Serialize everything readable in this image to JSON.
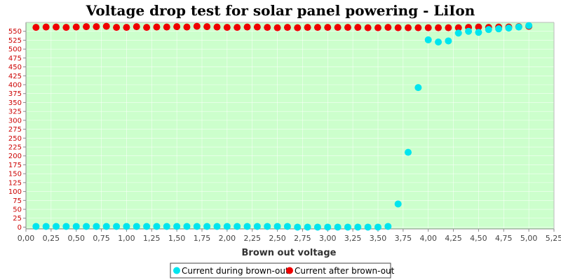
{
  "chart_data": {
    "type": "scatter",
    "title": "Voltage drop test for solar panel powering -  LiIon",
    "xlabel": "Brown out voltage",
    "ylabel": "",
    "xlim": [
      0,
      5.25
    ],
    "ylim": [
      -5,
      575
    ],
    "x_ticks": [
      "0,00",
      "0,25",
      "0,50",
      "0,75",
      "1,00",
      "1,25",
      "1,50",
      "1,75",
      "2,00",
      "2,25",
      "2,50",
      "2,75",
      "3,00",
      "3,25",
      "3,50",
      "3,75",
      "4,00",
      "4,25",
      "4,50",
      "4,75",
      "5,00",
      "5,25"
    ],
    "y_ticks": [
      "0",
      "25",
      "50",
      "75",
      "100",
      "125",
      "150",
      "175",
      "200",
      "225",
      "250",
      "275",
      "300",
      "325",
      "350",
      "375",
      "400",
      "425",
      "450",
      "475",
      "500",
      "525",
      "550"
    ],
    "grid": true,
    "legend_position": "bottom",
    "colors": {
      "plot_background": "#ccffcc",
      "during": "#00e5ee",
      "after": "#ee0000",
      "ytick": "#cc0000"
    },
    "series": [
      {
        "name": "Current after brown-out",
        "x": [
          0.1,
          0.2,
          0.3,
          0.4,
          0.5,
          0.6,
          0.7,
          0.8,
          0.9,
          1.0,
          1.1,
          1.2,
          1.3,
          1.4,
          1.5,
          1.6,
          1.7,
          1.8,
          1.9,
          2.0,
          2.1,
          2.2,
          2.3,
          2.4,
          2.5,
          2.6,
          2.7,
          2.8,
          2.9,
          3.0,
          3.1,
          3.2,
          3.3,
          3.4,
          3.5,
          3.6,
          3.7,
          3.8,
          3.9,
          4.0,
          4.1,
          4.2,
          4.3,
          4.4,
          4.5,
          4.6,
          4.7,
          4.8,
          4.9,
          5.0
        ],
        "y": [
          561,
          562,
          562,
          561,
          562,
          563,
          563,
          564,
          561,
          561,
          563,
          561,
          562,
          562,
          563,
          562,
          564,
          563,
          562,
          561,
          561,
          562,
          562,
          561,
          560,
          561,
          560,
          561,
          561,
          561,
          561,
          561,
          561,
          560,
          560,
          561,
          560,
          560,
          560,
          560,
          560,
          560,
          560,
          561,
          562,
          561,
          562,
          562,
          563,
          564
        ]
      },
      {
        "name": "Current during brown-out",
        "x": [
          0.1,
          0.2,
          0.3,
          0.4,
          0.5,
          0.6,
          0.7,
          0.8,
          0.9,
          1.0,
          1.1,
          1.2,
          1.3,
          1.4,
          1.5,
          1.6,
          1.7,
          1.8,
          1.9,
          2.0,
          2.1,
          2.2,
          2.3,
          2.4,
          2.5,
          2.6,
          2.7,
          2.8,
          2.9,
          3.0,
          3.1,
          3.2,
          3.3,
          3.4,
          3.5,
          3.6,
          3.7,
          3.8,
          3.9,
          4.0,
          4.1,
          4.2,
          4.3,
          4.4,
          4.5,
          4.6,
          4.7,
          4.8,
          4.9,
          5.0
        ],
        "y": [
          2,
          2,
          2,
          2,
          2,
          2,
          2,
          2,
          2,
          2,
          2,
          2,
          2,
          2,
          2,
          2,
          2,
          2,
          2,
          2,
          2,
          2,
          2,
          2,
          2,
          2,
          0,
          0,
          0,
          0,
          0,
          0,
          0,
          0,
          0,
          2,
          65,
          210,
          392,
          526,
          520,
          523,
          545,
          550,
          547,
          555,
          557,
          559,
          562,
          566
        ]
      }
    ]
  }
}
